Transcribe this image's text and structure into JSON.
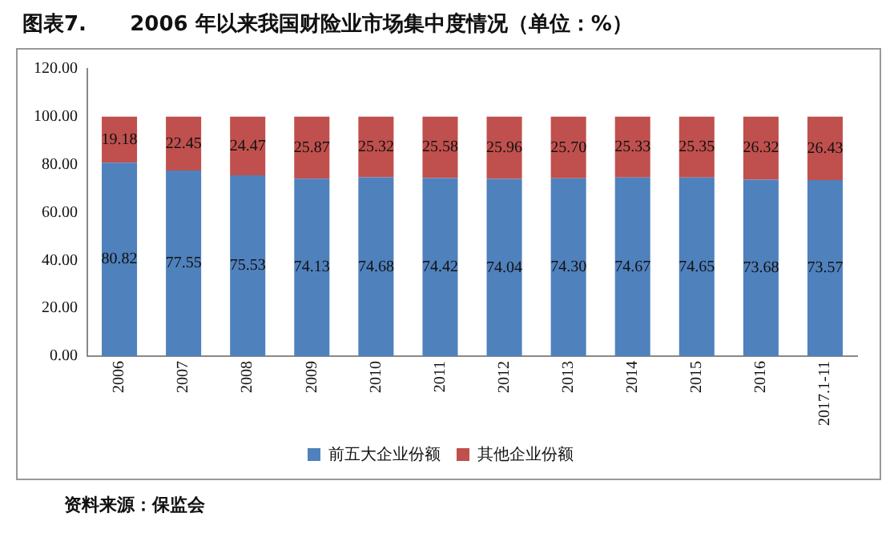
{
  "chart_data": {
    "type": "bar",
    "stacked": true,
    "title": "图表7.      2006 年以来我国财险业市场集中度情况（单位：%）",
    "annotations": [
      "资料来源：保监会"
    ],
    "categories": [
      "2006",
      "2007",
      "2008",
      "2009",
      "2010",
      "2011",
      "2012",
      "2013",
      "2014",
      "2015",
      "2016",
      "2017.1-11"
    ],
    "series": [
      {
        "name": "前五大企业份额",
        "color": "#4f81bd",
        "values": [
          80.82,
          77.55,
          75.53,
          74.13,
          74.68,
          74.42,
          74.04,
          74.3,
          74.67,
          74.65,
          73.68,
          73.57
        ],
        "value_labels": [
          "80.82",
          "77.55",
          "75.53",
          "74.13",
          "74.68",
          "74.42",
          "74.04",
          "74.30",
          "74.67",
          "74.65",
          "73.68",
          "73.57"
        ]
      },
      {
        "name": "其他企业份额",
        "color": "#c0504d",
        "values": [
          19.18,
          22.45,
          24.47,
          25.87,
          25.32,
          25.58,
          25.96,
          25.7,
          25.33,
          25.35,
          26.32,
          26.43
        ],
        "value_labels": [
          "19.18",
          "22.45",
          "24.47",
          "25.87",
          "25.32",
          "25.58",
          "25.96",
          "25.70",
          "25.33",
          "25.35",
          "26.32",
          "26.43"
        ]
      }
    ],
    "ylim": [
      0,
      120
    ],
    "yticks": [
      {
        "value": 0,
        "label": "0.00"
      },
      {
        "value": 20,
        "label": "20.00"
      },
      {
        "value": 40,
        "label": "40.00"
      },
      {
        "value": 60,
        "label": "60.00"
      },
      {
        "value": 80,
        "label": "80.00"
      },
      {
        "value": 100,
        "label": "100.00"
      },
      {
        "value": 120,
        "label": "120.00"
      }
    ],
    "grid": false,
    "legend": "bottom"
  }
}
